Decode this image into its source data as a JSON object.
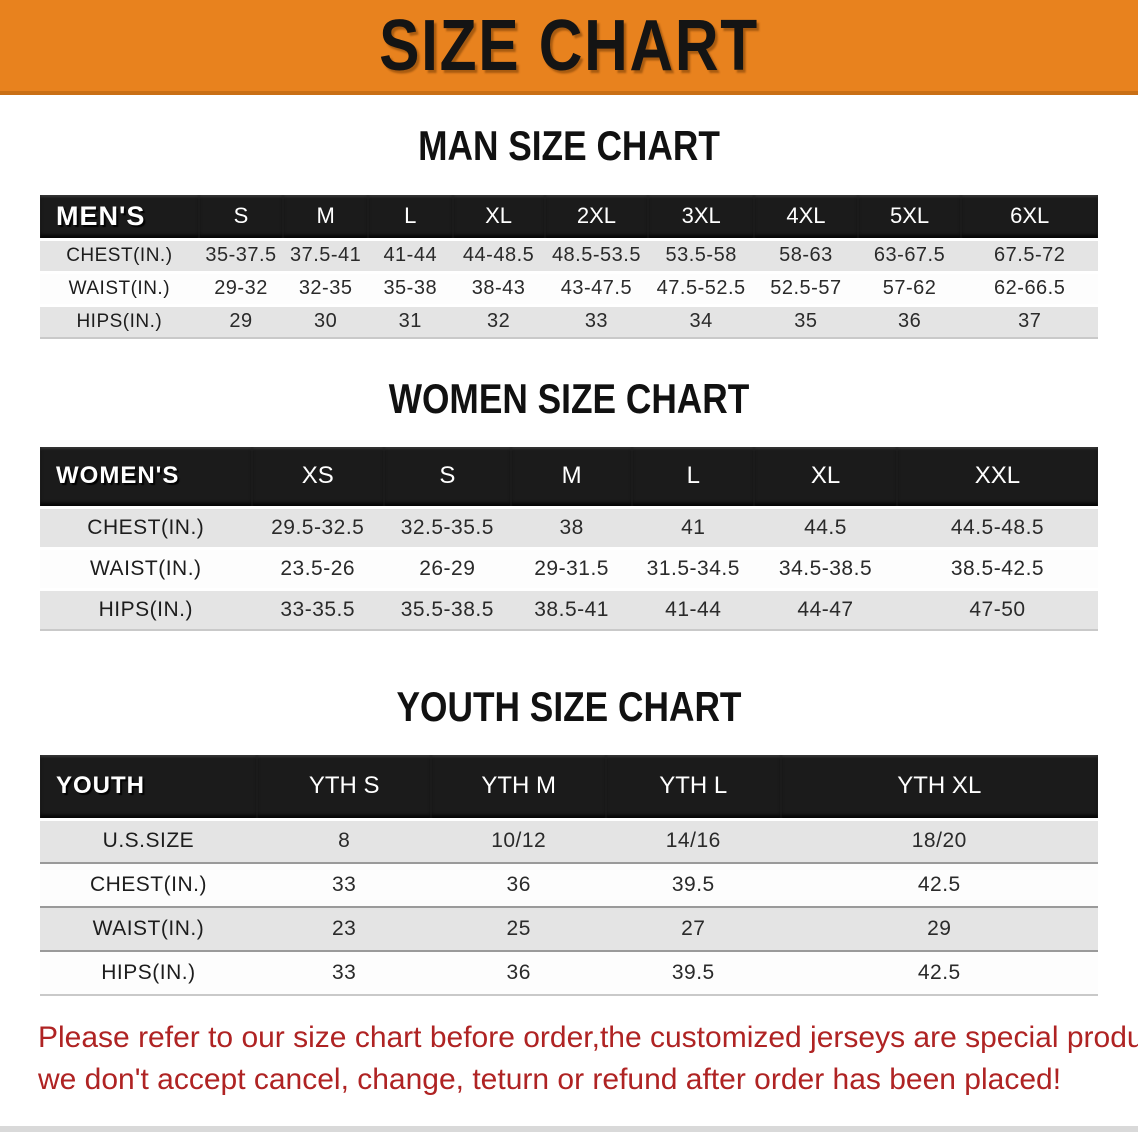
{
  "banner": {
    "title": "SIZE CHART"
  },
  "colors": {
    "banner_bg": "#E8821E",
    "banner_edge": "#C96F15",
    "table_header_bg": "#1B1B1B",
    "row_gray": "#E4E4E4",
    "disclaimer_red": "#AF2323"
  },
  "sections": [
    {
      "heading": "MAN SIZE CHART",
      "table": {
        "header_label": "MEN'S",
        "columns": [
          "S",
          "M",
          "L",
          "XL",
          "2XL",
          "3XL",
          "4XL",
          "5XL",
          "6XL"
        ],
        "rows": [
          {
            "label": "CHEST(IN.)",
            "values": [
              "35-37.5",
              "37.5-41",
              "41-44",
              "44-48.5",
              "48.5-53.5",
              "53.5-58",
              "58-63",
              "63-67.5",
              "67.5-72"
            ]
          },
          {
            "label": "WAIST(IN.)",
            "values": [
              "29-32",
              "32-35",
              "35-38",
              "38-43",
              "43-47.5",
              "47.5-52.5",
              "52.5-57",
              "57-62",
              "62-66.5"
            ]
          },
          {
            "label": "HIPS(IN.)",
            "values": [
              "29",
              "30",
              "31",
              "32",
              "33",
              "34",
              "35",
              "36",
              "37"
            ]
          }
        ]
      }
    },
    {
      "heading": "WOMEN SIZE CHART",
      "table": {
        "header_label": "WOMEN'S",
        "columns": [
          "XS",
          "S",
          "M",
          "L",
          "XL",
          "XXL"
        ],
        "rows": [
          {
            "label": "CHEST(IN.)",
            "values": [
              "29.5-32.5",
              "32.5-35.5",
              "38",
              "41",
              "44.5",
              "44.5-48.5"
            ]
          },
          {
            "label": "WAIST(IN.)",
            "values": [
              "23.5-26",
              "26-29",
              "29-31.5",
              "31.5-34.5",
              "34.5-38.5",
              "38.5-42.5"
            ]
          },
          {
            "label": "HIPS(IN.)",
            "values": [
              "33-35.5",
              "35.5-38.5",
              "38.5-41",
              "41-44",
              "44-47",
              "47-50"
            ]
          }
        ]
      }
    },
    {
      "heading": "YOUTH SIZE CHART",
      "table": {
        "header_label": "YOUTH",
        "columns": [
          "YTH S",
          "YTH M",
          "YTH L",
          "YTH XL"
        ],
        "rows": [
          {
            "label": "U.S.SIZE",
            "values": [
              "8",
              "10/12",
              "14/16",
              "18/20"
            ]
          },
          {
            "label": "CHEST(IN.)",
            "values": [
              "33",
              "36",
              "39.5",
              "42.5"
            ]
          },
          {
            "label": "WAIST(IN.)",
            "values": [
              "23",
              "25",
              "27",
              "29"
            ]
          },
          {
            "label": "HIPS(IN.)",
            "values": [
              "33",
              "36",
              "39.5",
              "42.5"
            ]
          }
        ]
      }
    }
  ],
  "disclaimer": {
    "line1": "Please refer to our size chart before order,the customized jerseys are special products,",
    "line2": "we don't accept cancel, change, teturn or refund after order has been placed!"
  }
}
